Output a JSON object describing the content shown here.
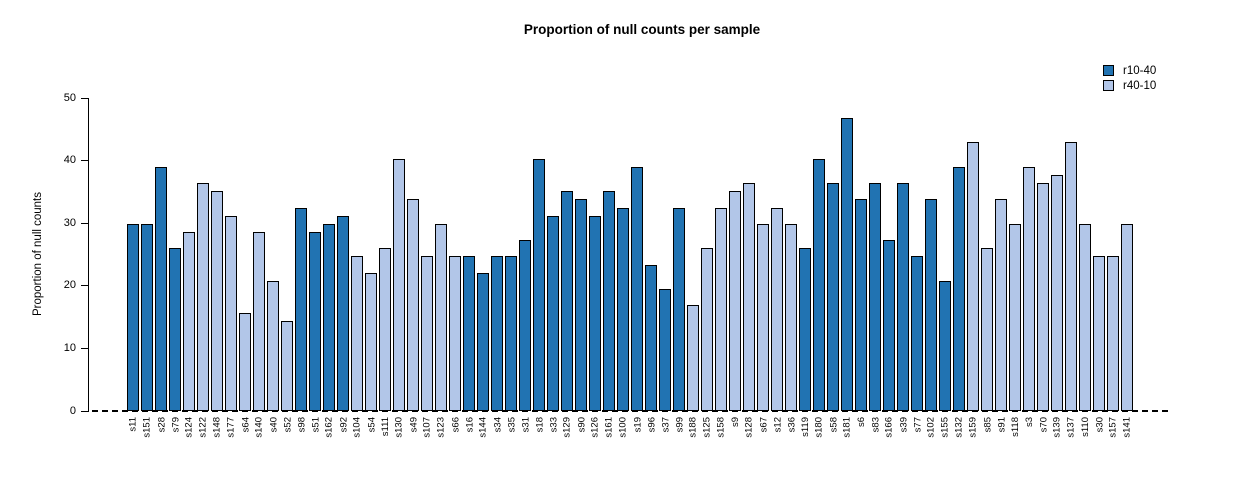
{
  "title": "Proportion of null counts per sample",
  "y_axis": {
    "label": "Proportion of null counts",
    "ticks": [
      0,
      10,
      20,
      30,
      40,
      50
    ]
  },
  "legend": [
    {
      "label": "r10-40",
      "color": "#2173b2"
    },
    {
      "label": "r40-10",
      "color": "#b2c6e8"
    }
  ],
  "chart_data": {
    "type": "bar",
    "title": "Proportion of null counts per sample",
    "xlabel": "",
    "ylabel": "Proportion of null counts",
    "ylim": [
      0,
      50
    ],
    "grid": false,
    "legend_position": "top-right",
    "bar_border_color": "#000000",
    "series_colors": {
      "r10-40": "#2173b2",
      "r40-10": "#b2c6e8"
    },
    "categories": [
      "s11",
      "s151",
      "s28",
      "s79",
      "s124",
      "s122",
      "s148",
      "s177",
      "s64",
      "s140",
      "s40",
      "s52",
      "s98",
      "s51",
      "s162",
      "s92",
      "s104",
      "s54",
      "s111",
      "s130",
      "s49",
      "s107",
      "s123",
      "s66",
      "s16",
      "s144",
      "s34",
      "s35",
      "s31",
      "s18",
      "s33",
      "s129",
      "s90",
      "s126",
      "s161",
      "s100",
      "s19",
      "s96",
      "s37",
      "s99",
      "s188",
      "s125",
      "s158",
      "s9",
      "s128",
      "s67",
      "s12",
      "s36",
      "s119",
      "s180",
      "s58",
      "s181",
      "s6",
      "s83",
      "s166",
      "s39",
      "s77",
      "s102",
      "s155",
      "s132",
      "s159",
      "s85",
      "s91",
      "s118",
      "s3",
      "s70",
      "s139",
      "s137",
      "s110",
      "s30",
      "s157",
      "s141"
    ],
    "values": [
      29.9,
      29.9,
      39.0,
      26.0,
      28.6,
      36.4,
      35.1,
      31.2,
      15.6,
      28.6,
      20.8,
      14.3,
      32.5,
      28.6,
      29.9,
      31.2,
      24.7,
      22.1,
      26.0,
      40.3,
      33.8,
      24.7,
      29.9,
      24.7,
      24.7,
      22.1,
      24.7,
      24.7,
      27.3,
      40.3,
      31.2,
      35.1,
      33.8,
      31.2,
      35.1,
      32.5,
      39.0,
      23.4,
      19.5,
      32.5,
      16.9,
      26.0,
      32.5,
      35.1,
      36.4,
      29.9,
      32.5,
      29.9,
      26.0,
      40.3,
      36.4,
      46.8,
      33.8,
      36.4,
      27.3,
      36.4,
      24.7,
      33.8,
      20.8,
      39.0,
      42.9,
      26.0,
      33.8,
      29.9,
      39.0,
      36.4,
      37.7,
      42.9,
      29.9,
      24.7,
      24.7,
      29.9
    ],
    "bar_series": [
      "r10-40",
      "r10-40",
      "r10-40",
      "r10-40",
      "r40-10",
      "r40-10",
      "r40-10",
      "r40-10",
      "r40-10",
      "r40-10",
      "r40-10",
      "r40-10",
      "r10-40",
      "r10-40",
      "r10-40",
      "r10-40",
      "r40-10",
      "r40-10",
      "r40-10",
      "r40-10",
      "r40-10",
      "r40-10",
      "r40-10",
      "r40-10",
      "r10-40",
      "r10-40",
      "r10-40",
      "r10-40",
      "r10-40",
      "r10-40",
      "r10-40",
      "r10-40",
      "r10-40",
      "r10-40",
      "r10-40",
      "r10-40",
      "r10-40",
      "r10-40",
      "r10-40",
      "r10-40",
      "r40-10",
      "r40-10",
      "r40-10",
      "r40-10",
      "r40-10",
      "r40-10",
      "r40-10",
      "r40-10",
      "r10-40",
      "r10-40",
      "r10-40",
      "r10-40",
      "r10-40",
      "r10-40",
      "r10-40",
      "r10-40",
      "r10-40",
      "r10-40",
      "r10-40",
      "r10-40",
      "r40-10",
      "r40-10",
      "r40-10",
      "r40-10",
      "r40-10",
      "r40-10",
      "r40-10",
      "r40-10",
      "r40-10",
      "r40-10",
      "r40-10",
      "r40-10"
    ]
  }
}
